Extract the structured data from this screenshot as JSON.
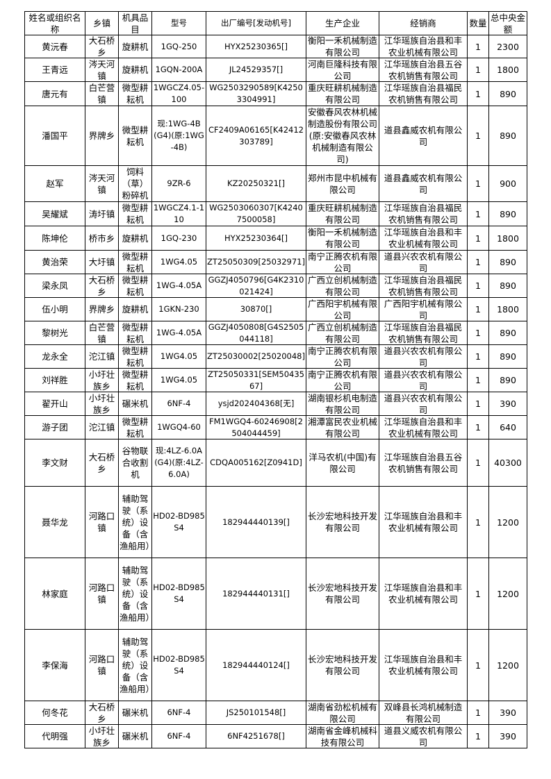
{
  "headers": [
    "姓名或组织名称",
    "乡镇",
    "机具品目",
    "型号",
    "出厂编号[发动机号]",
    "生产企业",
    "经销商",
    "数量",
    "总中央金额"
  ],
  "rows": [
    [
      "黄沅春",
      "大石桥乡",
      "旋耕机",
      "1GQ-250",
      "HYX25230365[]",
      "衡阳一禾机械制造有限公司",
      "江华瑶族自治县和丰农业机械有限公司",
      "1",
      "2300"
    ],
    [
      "王青远",
      "涔天河镇",
      "旋耕机",
      "1GQN-200A",
      "JL24529357[]",
      "河南巨隆科技有限公司",
      "江华瑶族自治县五谷农机销售有限公司",
      "1",
      "1800"
    ],
    [
      "唐元有",
      "白芒营镇",
      "微型耕耘机",
      "1WGCZ4.05-100",
      "WG2503290589[K42503304991]",
      "重庆旺耕机械制造有限公司",
      "江华瑶族自治县福民农机销售有限公司",
      "1",
      "890"
    ],
    [
      "潘国平",
      "界牌乡",
      "微型耕耘机",
      "现:1WG-4B(G4)(原:1WG-4B)",
      "CF2409A06165[K42412303789]",
      "安徽春风农林机械制造股份有限公司(原:安徽春风农林机械制造有限公司)",
      "道县鑫威农机有限公司",
      "1",
      "890"
    ],
    [
      "赵军",
      "涔天河镇",
      "饲料（草）粉碎机",
      "9ZR-6",
      "KZ20250321[]",
      "郑州市昆中机械有限公司",
      "道县鑫威农机有限公司",
      "1",
      "900"
    ],
    [
      "吴耀斌",
      "涛圩镇",
      "微型耕耘机",
      "1WGCZ4.1-110",
      "WG2503060307[K42407500058]",
      "重庆旺耕机械制造有限公司",
      "江华瑶族自治县福民农机销售有限公司",
      "1",
      "890"
    ],
    [
      "陈坤伦",
      "桥市乡",
      "旋耕机",
      "1GQ-230",
      "HYX25230364[]",
      "衡阳一禾机械制造有限公司",
      "江华瑶族自治县和丰农业机械有限公司",
      "1",
      "1800"
    ],
    [
      "黄治荣",
      "大圩镇",
      "微型耕耘机",
      "1WG4.05",
      "ZT25050309[25032971]",
      "南宁正腾农机有限公司",
      "道县兴农农机有限公司",
      "1",
      "890"
    ],
    [
      "梁永凤",
      "大石桥乡",
      "微型耕耘机",
      "1WG-4.05A",
      "GGZJ4050796[G4K2310021424]",
      "广西立创机械制造有限公司",
      "江华瑶族自治县福民农机销售有限公司",
      "1",
      "890"
    ],
    [
      "伍小明",
      "界牌乡",
      "旋耕机",
      "1GKN-230",
      "30870[]",
      "广西阳宇机械有限公司",
      "广西阳宇机械有限公司",
      "1",
      "1800"
    ],
    [
      "黎树光",
      "白芒营镇",
      "微型耕耘机",
      "1WG-4.05A",
      "GGZJ4050808[G4S2505044118]",
      "广西立创机械制造有限公司",
      "江华瑶族自治县福民农机销售有限公司",
      "1",
      "890"
    ],
    [
      "龙永全",
      "沱江镇",
      "微型耕耘机",
      "1WG4.05",
      "ZT25030002[25020048]",
      "南宁正腾农机有限公司",
      "道县兴农农机有限公司",
      "1",
      "890"
    ],
    [
      "刘祥胜",
      "小圩壮族乡",
      "微型耕耘机",
      "1WG4.05",
      "ZT25050331[SEM5043567]",
      "南宁正腾农机有限公司",
      "道县兴农农机有限公司",
      "1",
      "890"
    ],
    [
      "翟开山",
      "小圩壮族乡",
      "碾米机",
      "6NF-4",
      "ysjd202404368[无]",
      "湖南银杉机电制造有限公司",
      "道县兴农农机有限公司",
      "1",
      "390"
    ],
    [
      "游子团",
      "沱江镇",
      "微型耕耘机",
      "1WGQ4-60",
      "FM1WGQ4-60246908[2504044459]",
      "湘潭富民农业机械有限公司",
      "江华瑶族自治县和丰农业机械有限公司",
      "1",
      "640"
    ],
    [
      "李文财",
      "大石桥乡",
      "谷物联合收割机",
      "现:4LZ-6.0A(G4)(原:4LZ-6.0A)",
      "CDQA005162[Z0941D]",
      "洋马农机(中国)有限公司",
      "江华瑶族自治县五谷农机销售有限公司",
      "1",
      "40300"
    ],
    [
      "聂华龙",
      "河路口镇",
      "辅助驾驶（系统）设备（含渔船用）",
      "HD02-BD985S4",
      "182944440139[]",
      "长沙宏地科技开发有限公司",
      "江华瑶族自治县和丰农业机械有限公司",
      "1",
      "1200"
    ],
    [
      "林家庭",
      "河路口镇",
      "辅助驾驶（系统）设备（含渔船用）",
      "HD02-BD985S4",
      "182944440131[]",
      "长沙宏地科技开发有限公司",
      "江华瑶族自治县和丰农业机械有限公司",
      "1",
      "1200"
    ],
    [
      "李保海",
      "河路口镇",
      "辅助驾驶（系统）设备（含渔船用）",
      "HD02-BD985S4",
      "182944440124[]",
      "长沙宏地科技开发有限公司",
      "江华瑶族自治县和丰农业机械有限公司",
      "1",
      "1200"
    ],
    [
      "何冬花",
      "大石桥乡",
      "碾米机",
      "6NF-4",
      "JS250101548[]",
      "湖南省劲松机械有限公司",
      "双峰县长鸿机械制造有限公司",
      "1",
      "390"
    ],
    [
      "代明强",
      "小圩壮族乡",
      "碾米机",
      "6NF-4",
      "6NF4251678[]",
      "湖南省金峰机械科技有限公司",
      "道县义威农机有限公司",
      "1",
      "390"
    ]
  ]
}
